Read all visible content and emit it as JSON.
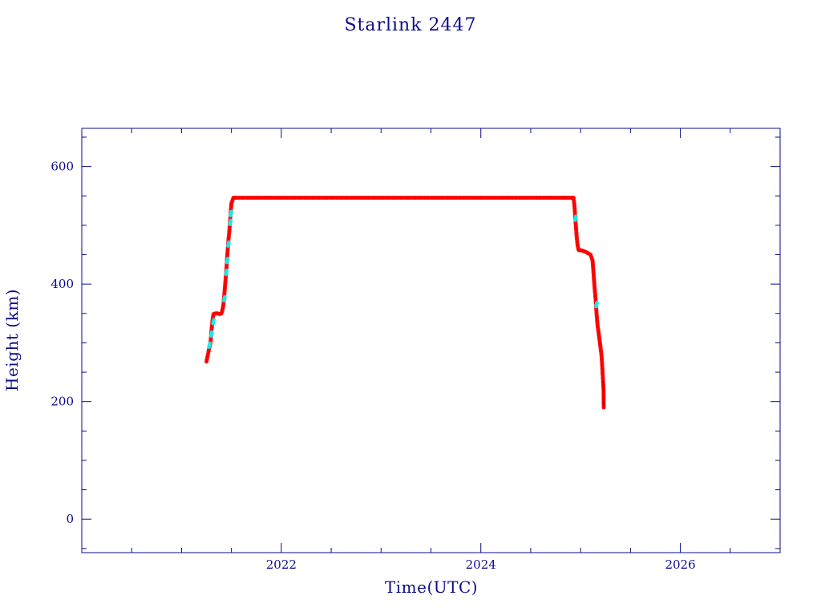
{
  "chart_data": {
    "type": "scatter",
    "title": "Starlink 2447",
    "xlabel": "Time(UTC)",
    "ylabel": "Height (km)",
    "xlim": [
      2020.0,
      2027.0
    ],
    "ylim": [
      -57,
      665
    ],
    "x_major_ticks": [
      2022,
      2024,
      2026
    ],
    "x_tick_labels": [
      "2022",
      "2024",
      "2026"
    ],
    "x_minor_step": 0.5,
    "y_major_ticks": [
      0,
      200,
      400,
      600
    ],
    "y_tick_labels": [
      "0",
      "200",
      "400",
      "600"
    ],
    "y_minor_step": 50,
    "grid": false,
    "legend": "none",
    "colors": {
      "axis": "#0b0b8c",
      "primary_points": "#ff0000",
      "secondary_points": "#1ee8e8"
    },
    "series": [
      {
        "color": "#ff0000",
        "points": [
          [
            2021.25,
            268
          ],
          [
            2021.27,
            285
          ],
          [
            2021.29,
            300
          ],
          [
            2021.3,
            320
          ],
          [
            2021.31,
            338
          ],
          [
            2021.32,
            349
          ],
          [
            2021.34,
            350
          ],
          [
            2021.36,
            350
          ],
          [
            2021.38,
            349
          ],
          [
            2021.4,
            350
          ],
          [
            2021.41,
            356
          ],
          [
            2021.42,
            365
          ],
          [
            2021.43,
            385
          ],
          [
            2021.44,
            405
          ],
          [
            2021.45,
            425
          ],
          [
            2021.46,
            452
          ],
          [
            2021.47,
            475
          ],
          [
            2021.48,
            492
          ],
          [
            2021.49,
            515
          ],
          [
            2021.5,
            537
          ],
          [
            2021.52,
            547
          ],
          [
            2021.75,
            547
          ],
          [
            2022.0,
            547
          ],
          [
            2022.5,
            547
          ],
          [
            2023.0,
            547
          ],
          [
            2023.5,
            547
          ],
          [
            2024.0,
            547
          ],
          [
            2024.5,
            547
          ],
          [
            2024.8,
            547
          ],
          [
            2024.93,
            547
          ],
          [
            2024.94,
            530
          ],
          [
            2024.95,
            505
          ],
          [
            2024.96,
            482
          ],
          [
            2024.97,
            466
          ],
          [
            2024.98,
            458
          ],
          [
            2025.02,
            457
          ],
          [
            2025.06,
            454
          ],
          [
            2025.1,
            450
          ],
          [
            2025.12,
            440
          ],
          [
            2025.13,
            418
          ],
          [
            2025.14,
            395
          ],
          [
            2025.15,
            375
          ],
          [
            2025.16,
            350
          ],
          [
            2025.17,
            330
          ],
          [
            2025.18,
            318
          ],
          [
            2025.19,
            305
          ],
          [
            2025.2,
            292
          ],
          [
            2025.21,
            278
          ],
          [
            2025.215,
            265
          ],
          [
            2025.22,
            250
          ],
          [
            2025.225,
            235
          ],
          [
            2025.23,
            220
          ],
          [
            2025.232,
            190
          ]
        ]
      },
      {
        "color": "#1ee8e8",
        "points": [
          [
            2021.28,
            296
          ],
          [
            2021.3,
            315
          ],
          [
            2021.32,
            336
          ],
          [
            2021.43,
            375
          ],
          [
            2021.45,
            420
          ],
          [
            2021.46,
            440
          ],
          [
            2021.47,
            468
          ],
          [
            2021.49,
            505
          ],
          [
            2021.495,
            520
          ],
          [
            2024.95,
            512
          ],
          [
            2025.16,
            365
          ]
        ]
      }
    ]
  }
}
